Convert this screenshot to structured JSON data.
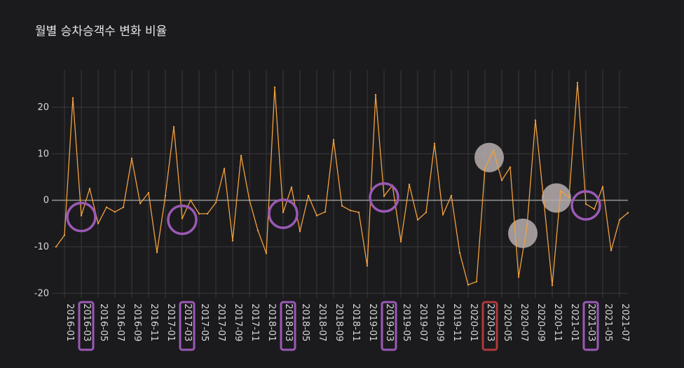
{
  "chart_data": {
    "type": "line",
    "title": "월별 승차승객수 변화 비율",
    "xlabel": "",
    "ylabel": "",
    "ylim": [
      -21,
      28
    ],
    "y_ticks": [
      -20,
      -10,
      0,
      10,
      20
    ],
    "grid": true,
    "x_tick_labels": [
      "2016-01",
      "2016-03",
      "2016-05",
      "2016-07",
      "2016-09",
      "2016-11",
      "2017-01",
      "2017-03",
      "2017-05",
      "2017-07",
      "2017-09",
      "2017-11",
      "2018-01",
      "2018-03",
      "2018-05",
      "2018-07",
      "2018-09",
      "2018-11",
      "2019-01",
      "2019-03",
      "2019-05",
      "2019-07",
      "2019-09",
      "2019-11",
      "2020-01",
      "2020-03",
      "2020-05",
      "2020-07",
      "2020-09",
      "2020-11",
      "2021-01",
      "2021-03",
      "2021-05",
      "2021-07"
    ],
    "x": [
      "2015-12",
      "2016-01",
      "2016-02",
      "2016-03",
      "2016-04",
      "2016-05",
      "2016-06",
      "2016-07",
      "2016-08",
      "2016-09",
      "2016-10",
      "2016-11",
      "2016-12",
      "2017-01",
      "2017-02",
      "2017-03",
      "2017-04",
      "2017-05",
      "2017-06",
      "2017-07",
      "2017-08",
      "2017-09",
      "2017-10",
      "2017-11",
      "2017-12",
      "2018-01",
      "2018-02",
      "2018-03",
      "2018-04",
      "2018-05",
      "2018-06",
      "2018-07",
      "2018-08",
      "2018-09",
      "2018-10",
      "2018-11",
      "2018-12",
      "2019-01",
      "2019-02",
      "2019-03",
      "2019-04",
      "2019-05",
      "2019-06",
      "2019-07",
      "2019-08",
      "2019-09",
      "2019-10",
      "2019-11",
      "2019-12",
      "2020-01",
      "2020-02",
      "2020-03",
      "2020-04",
      "2020-05",
      "2020-06",
      "2020-07",
      "2020-08",
      "2020-09",
      "2020-10",
      "2020-11",
      "2020-12",
      "2021-01",
      "2021-02",
      "2021-03",
      "2021-04",
      "2021-05",
      "2021-06",
      "2021-07",
      "2021-08"
    ],
    "series": [
      {
        "color": "#f2a03d",
        "values": [
          -10,
          -7.5,
          22,
          -3.3,
          2.5,
          -5,
          -1.5,
          -2.5,
          -1.5,
          9,
          -0.7,
          1.6,
          -11.2,
          1,
          15.8,
          -3.9,
          0,
          -2.9,
          -2.9,
          -0.5,
          6.8,
          -8.7,
          9.6,
          0,
          -6.5,
          -11.4,
          24.3,
          -2.6,
          2.8,
          -6.7,
          1,
          -3.3,
          -2.5,
          13,
          -1.2,
          -2.2,
          -2.6,
          -14.1,
          22.7,
          0.9,
          3.2,
          -8.9,
          3.4,
          -4.2,
          -2.6,
          12.2,
          -3.1,
          1,
          -11.3,
          -18.2,
          -17.5,
          6.9,
          10.7,
          4.3,
          7.1,
          -16.5,
          -5.6,
          17.2,
          -0.2,
          -18.3,
          2,
          0.6,
          25.3,
          -0.8,
          -1.9,
          2.9,
          -10.8,
          -4.2,
          -2.7
        ]
      }
    ],
    "annotations": {
      "highlight_circles": [
        {
          "x": "2016-03",
          "color": "#9b59b6"
        },
        {
          "x": "2017-03",
          "color": "#9b59b6"
        },
        {
          "x": "2018-03",
          "color": "#9b59b6"
        },
        {
          "x": "2019-03",
          "color": "#9b59b6"
        },
        {
          "x": "2021-03",
          "color": "#9b59b6"
        }
      ],
      "low_markers": [
        {
          "x": "2020-04"
        },
        {
          "x": "2020-08"
        },
        {
          "x": "2020-12"
        }
      ],
      "boxed_tick_labels": [
        {
          "label": "2016-03",
          "color": "#9b59b6"
        },
        {
          "label": "2017-03",
          "color": "#9b59b6"
        },
        {
          "label": "2018-03",
          "color": "#9b59b6"
        },
        {
          "label": "2019-03",
          "color": "#9b59b6"
        },
        {
          "label": "2020-03",
          "color": "#b03a3a"
        },
        {
          "label": "2021-03",
          "color": "#9b59b6"
        }
      ]
    }
  }
}
